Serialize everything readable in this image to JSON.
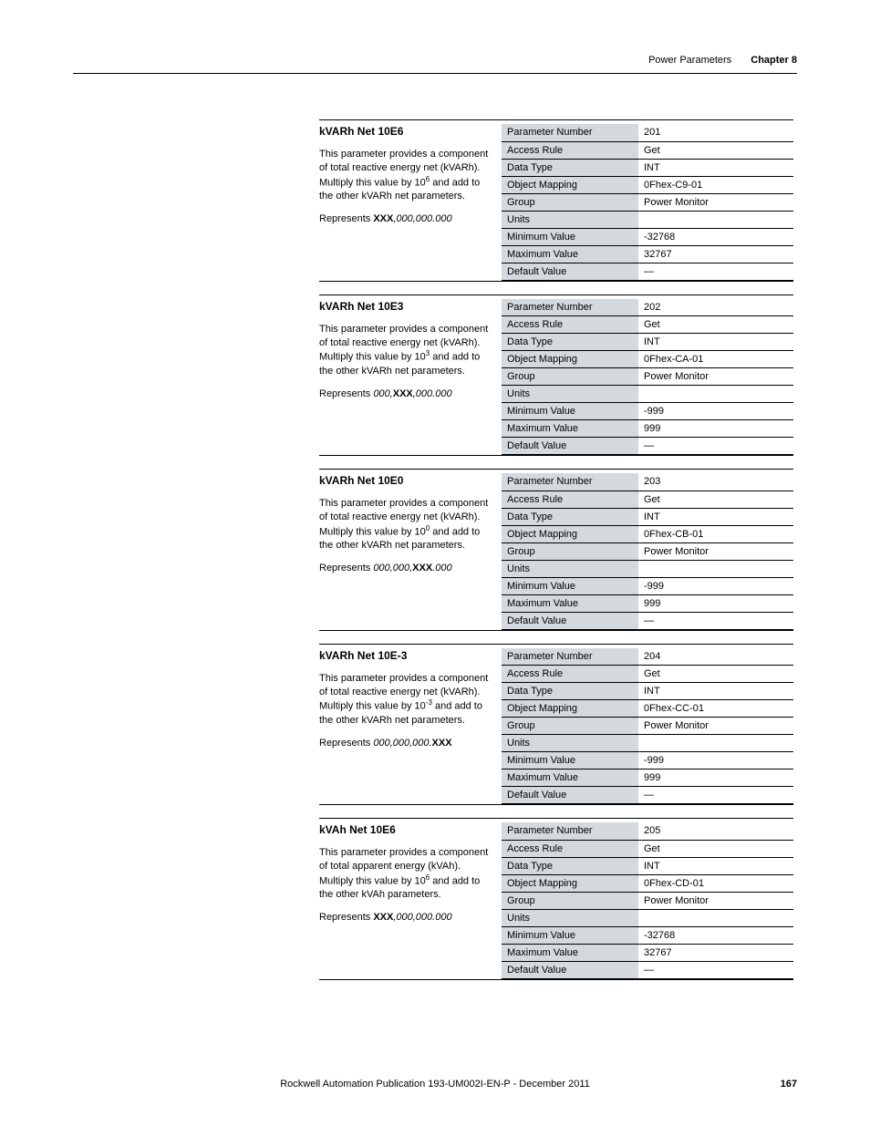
{
  "header": {
    "section": "Power Parameters",
    "chapter": "Chapter 8"
  },
  "row_labels": [
    "Parameter Number",
    "Access Rule",
    "Data Type",
    "Object Mapping",
    "Group",
    "Units",
    "Minimum Value",
    "Maximum Value",
    "Default Value"
  ],
  "blocks": [
    {
      "title": "kVARh Net 10E6",
      "body_pre": "This parameter provides a component of total reactive energy net (kVARh). Multiply this value by 10",
      "body_sup": "6",
      "body_post": " and add to the other kVARh net parameters.",
      "rep_pre": "Represents ",
      "rep_bold": "XXX",
      "rep_ital": ",000,000.000",
      "values": [
        "201",
        "Get",
        "INT",
        "0Fhex-C9-01",
        "Power Monitor",
        "",
        "-32768",
        "32767",
        "—"
      ]
    },
    {
      "title": "kVARh Net 10E3",
      "body_pre": "This parameter provides a component of total reactive energy net (kVARh). Multiply this value by 10",
      "body_sup": "3",
      "body_post": " and add to the other kVARh net parameters.",
      "rep_pre": "Represents ",
      "rep_ital_pre": "000,",
      "rep_bold": "XXX",
      "rep_ital": ",000.000",
      "values": [
        "202",
        "Get",
        "INT",
        "0Fhex-CA-01",
        "Power Monitor",
        "",
        "-999",
        "999",
        "—"
      ]
    },
    {
      "title": "kVARh Net 10E0",
      "body_pre": "This parameter provides a component of total reactive energy net (kVARh). Multiply this value by 10",
      "body_sup": "0",
      "body_post": " and add to the other kVARh net parameters.",
      "rep_pre": "Represents ",
      "rep_ital_pre": "000,000,",
      "rep_bold": "XXX",
      "rep_ital": ".000",
      "values": [
        "203",
        "Get",
        "INT",
        "0Fhex-CB-01",
        "Power Monitor",
        "",
        "-999",
        "999",
        "—"
      ]
    },
    {
      "title": "kVARh Net 10E-3",
      "body_pre": "This parameter provides a component of total reactive energy net (kVARh). Multiply this value by 10",
      "body_sup": "-3",
      "body_post": " and add to the other kVARh net parameters.",
      "rep_pre": "Represents ",
      "rep_ital_pre": "000,000,000.",
      "rep_bold": "XXX",
      "rep_ital": "",
      "values": [
        "204",
        "Get",
        "INT",
        "0Fhex-CC-01",
        "Power Monitor",
        "",
        "-999",
        "999",
        "—"
      ]
    },
    {
      "title": "kVAh Net 10E6",
      "body_pre": "This parameter provides a component of total apparent energy (kVAh).  Multiply this value by 10",
      "body_sup": "6",
      "body_post": " and add to the other kVAh parameters.",
      "rep_pre": "Represents ",
      "rep_bold": "XXX",
      "rep_ital": ",000,000.000",
      "values": [
        "205",
        "Get",
        "INT",
        "0Fhex-CD-01",
        "Power Monitor",
        "",
        "-32768",
        "32767",
        "—"
      ]
    }
  ],
  "footer": {
    "publication": "Rockwell Automation Publication 193-UM002I-EN-P - December 2011",
    "page": "167"
  }
}
